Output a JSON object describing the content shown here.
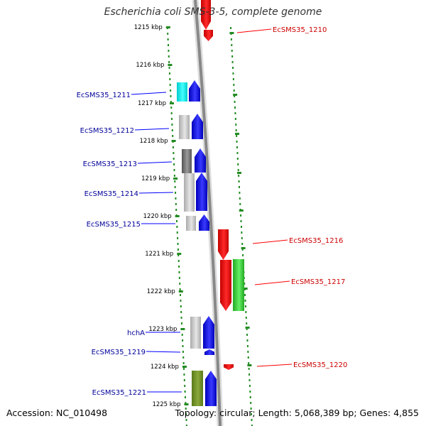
{
  "title": "Escherichia coli SMS-3-5, complete genome",
  "footer": {
    "accession": "Accession: NC_010498",
    "topology": "Topology: circular; Length: 5,068,389 bp; Genes: 4,855"
  },
  "colors": {
    "forward_gene": "#0000ff",
    "reverse_gene": "#ff0000",
    "forward_label": "#000099",
    "reverse_label": "#cc0000",
    "dots": "#228b22",
    "backbone": "#888888"
  },
  "scale": {
    "ticks": [
      "1215 kbp",
      "1216 kbp",
      "1217 kbp",
      "1218 kbp",
      "1219 kbp",
      "1220 kbp",
      "1221 kbp",
      "1222 kbp",
      "1223 kbp",
      "1224 kbp",
      "1225 kbp"
    ]
  },
  "forward_gene_labels": [
    "EcSMS35_1211",
    "EcSMS35_1212",
    "EcSMS35_1213",
    "EcSMS35_1214",
    "EcSMS35_1215",
    "hchA",
    "EcSMS35_1219",
    "EcSMS35_1221"
  ],
  "reverse_gene_labels": [
    "EcSMS35_1210",
    "EcSMS35_1216",
    "EcSMS35_1217",
    "EcSMS35_1220"
  ]
}
